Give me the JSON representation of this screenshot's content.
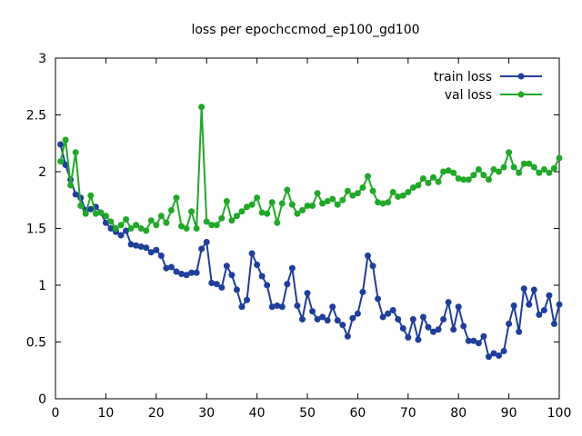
{
  "chart_data": {
    "type": "line",
    "title": "loss per epochccmod_ep100_gd100",
    "xlabel": "",
    "ylabel": "",
    "xlim": [
      0,
      100
    ],
    "ylim": [
      0,
      3
    ],
    "xticks": [
      "0",
      "10",
      "20",
      "30",
      "40",
      "50",
      "60",
      "70",
      "80",
      "90",
      "100"
    ],
    "yticks": [
      "0",
      "0.5",
      "1",
      "1.5",
      "2",
      "2.5",
      "3"
    ],
    "grid": false,
    "legend_position": "top-right",
    "series": [
      {
        "name": "train loss",
        "color": "#1f3f9a",
        "x": [
          1,
          2,
          3,
          4,
          5,
          6,
          7,
          8,
          9,
          10,
          11,
          12,
          13,
          14,
          15,
          16,
          17,
          18,
          19,
          20,
          21,
          22,
          23,
          24,
          25,
          26,
          27,
          28,
          29,
          30,
          31,
          32,
          33,
          34,
          35,
          36,
          37,
          38,
          39,
          40,
          41,
          42,
          43,
          44,
          45,
          46,
          47,
          48,
          49,
          50,
          51,
          52,
          53,
          54,
          55,
          56,
          57,
          58,
          59,
          60,
          61,
          62,
          63,
          64,
          65,
          66,
          67,
          68,
          69,
          70,
          71,
          72,
          73,
          74,
          75,
          76,
          77,
          78,
          79,
          80,
          81,
          82,
          83,
          84,
          85,
          86,
          87,
          88,
          89,
          90,
          91,
          92,
          93,
          94,
          95,
          96,
          97,
          98,
          99,
          100
        ],
        "values": [
          2.24,
          2.06,
          1.93,
          1.8,
          1.77,
          1.66,
          1.67,
          1.69,
          1.64,
          1.55,
          1.5,
          1.47,
          1.44,
          1.48,
          1.36,
          1.35,
          1.34,
          1.33,
          1.29,
          1.31,
          1.26,
          1.15,
          1.16,
          1.12,
          1.1,
          1.09,
          1.11,
          1.11,
          1.32,
          1.38,
          1.02,
          1.01,
          0.98,
          1.17,
          1.09,
          0.96,
          0.81,
          0.87,
          1.28,
          1.18,
          1.08,
          1.0,
          0.81,
          0.82,
          0.81,
          1.01,
          1.15,
          0.82,
          0.7,
          0.93,
          0.77,
          0.7,
          0.72,
          0.69,
          0.81,
          0.69,
          0.65,
          0.55,
          0.71,
          0.75,
          0.94,
          1.26,
          1.17,
          0.88,
          0.72,
          0.75,
          0.78,
          0.7,
          0.62,
          0.54,
          0.7,
          0.52,
          0.72,
          0.63,
          0.59,
          0.61,
          0.7,
          0.85,
          0.61,
          0.81,
          0.64,
          0.51,
          0.51,
          0.49,
          0.55,
          0.37,
          0.4,
          0.38,
          0.42,
          0.66,
          0.82,
          0.59,
          0.97,
          0.83,
          0.96,
          0.74,
          0.78,
          0.91,
          0.66,
          0.83
        ]
      },
      {
        "name": "val loss",
        "color": "#22a829",
        "x": [
          1,
          2,
          3,
          4,
          5,
          6,
          7,
          8,
          9,
          10,
          11,
          12,
          13,
          14,
          15,
          16,
          17,
          18,
          19,
          20,
          21,
          22,
          23,
          24,
          25,
          26,
          27,
          28,
          29,
          30,
          31,
          32,
          33,
          34,
          35,
          36,
          37,
          38,
          39,
          40,
          41,
          42,
          43,
          44,
          45,
          46,
          47,
          48,
          49,
          50,
          51,
          52,
          53,
          54,
          55,
          56,
          57,
          58,
          59,
          60,
          61,
          62,
          63,
          64,
          65,
          66,
          67,
          68,
          69,
          70,
          71,
          72,
          73,
          74,
          75,
          76,
          77,
          78,
          79,
          80,
          81,
          82,
          83,
          84,
          85,
          86,
          87,
          88,
          89,
          90,
          91,
          92,
          93,
          94,
          95,
          96,
          97,
          98,
          99,
          100
        ],
        "values": [
          2.09,
          2.28,
          1.88,
          2.17,
          1.7,
          1.63,
          1.79,
          1.63,
          1.64,
          1.61,
          1.56,
          1.5,
          1.53,
          1.58,
          1.5,
          1.53,
          1.5,
          1.48,
          1.57,
          1.53,
          1.61,
          1.55,
          1.66,
          1.77,
          1.52,
          1.5,
          1.65,
          1.5,
          2.57,
          1.56,
          1.53,
          1.53,
          1.59,
          1.74,
          1.57,
          1.61,
          1.65,
          1.69,
          1.71,
          1.77,
          1.64,
          1.63,
          1.73,
          1.55,
          1.72,
          1.84,
          1.71,
          1.63,
          1.66,
          1.7,
          1.7,
          1.81,
          1.72,
          1.74,
          1.76,
          1.71,
          1.75,
          1.83,
          1.79,
          1.81,
          1.86,
          1.96,
          1.83,
          1.73,
          1.72,
          1.73,
          1.82,
          1.78,
          1.79,
          1.82,
          1.86,
          1.88,
          1.94,
          1.9,
          1.95,
          1.91,
          2.0,
          2.01,
          1.99,
          1.94,
          1.93,
          1.93,
          1.97,
          2.02,
          1.97,
          1.93,
          2.02,
          2.0,
          2.04,
          2.17,
          2.04,
          1.99,
          2.07,
          2.07,
          2.04,
          1.99,
          2.02,
          1.99,
          2.03,
          2.12
        ]
      }
    ]
  }
}
